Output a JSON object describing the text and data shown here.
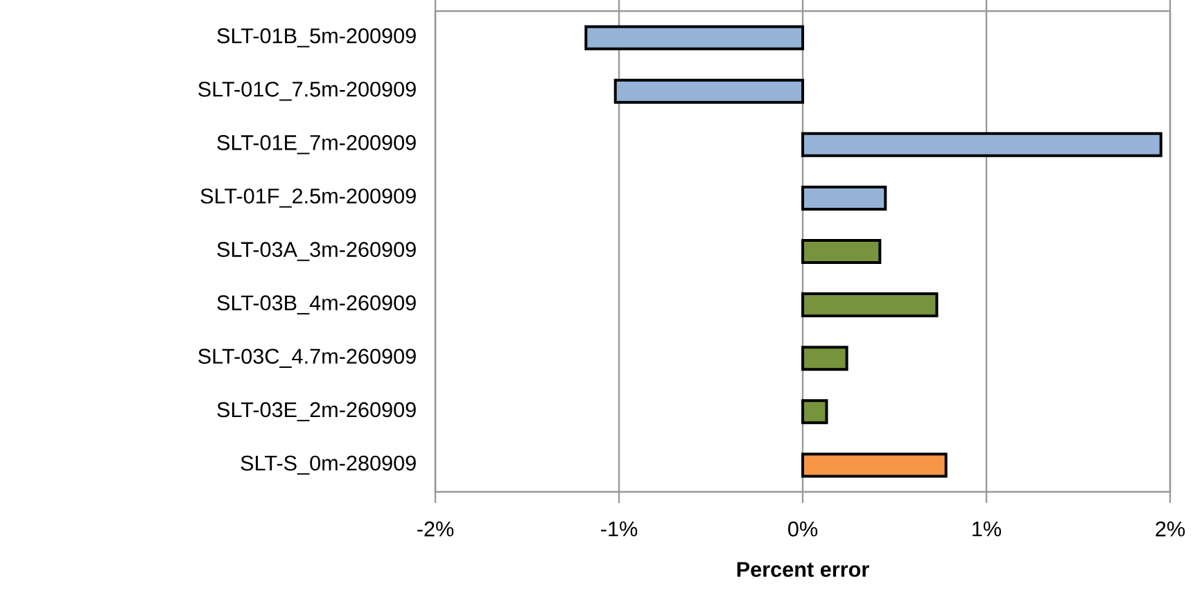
{
  "chart_data": {
    "type": "bar",
    "orientation": "horizontal",
    "xlabel": "Percent error",
    "categories": [
      "SLT-01B_5m-200909",
      "SLT-01C_7.5m-200909",
      "SLT-01E_7m-200909",
      "SLT-01F_2.5m-200909",
      "SLT-03A_3m-260909",
      "SLT-03B_4m-260909",
      "SLT-03C_4.7m-260909",
      "SLT-03E_2m-260909",
      "SLT-S_0m-280909"
    ],
    "values": [
      -1.18,
      -1.02,
      1.95,
      0.45,
      0.42,
      0.73,
      0.24,
      0.13,
      0.78
    ],
    "colors": [
      "#95b3d7",
      "#95b3d7",
      "#95b3d7",
      "#95b3d7",
      "#77933c",
      "#77933c",
      "#77933c",
      "#77933c",
      "#f79646"
    ],
    "xlim": [
      -2,
      2
    ],
    "xticks": [
      {
        "value": -2,
        "label": "-2%"
      },
      {
        "value": -1,
        "label": "-1%"
      },
      {
        "value": 0,
        "label": "0%"
      },
      {
        "value": 1,
        "label": "1%"
      },
      {
        "value": 2,
        "label": "2%"
      }
    ],
    "grid": "x"
  }
}
